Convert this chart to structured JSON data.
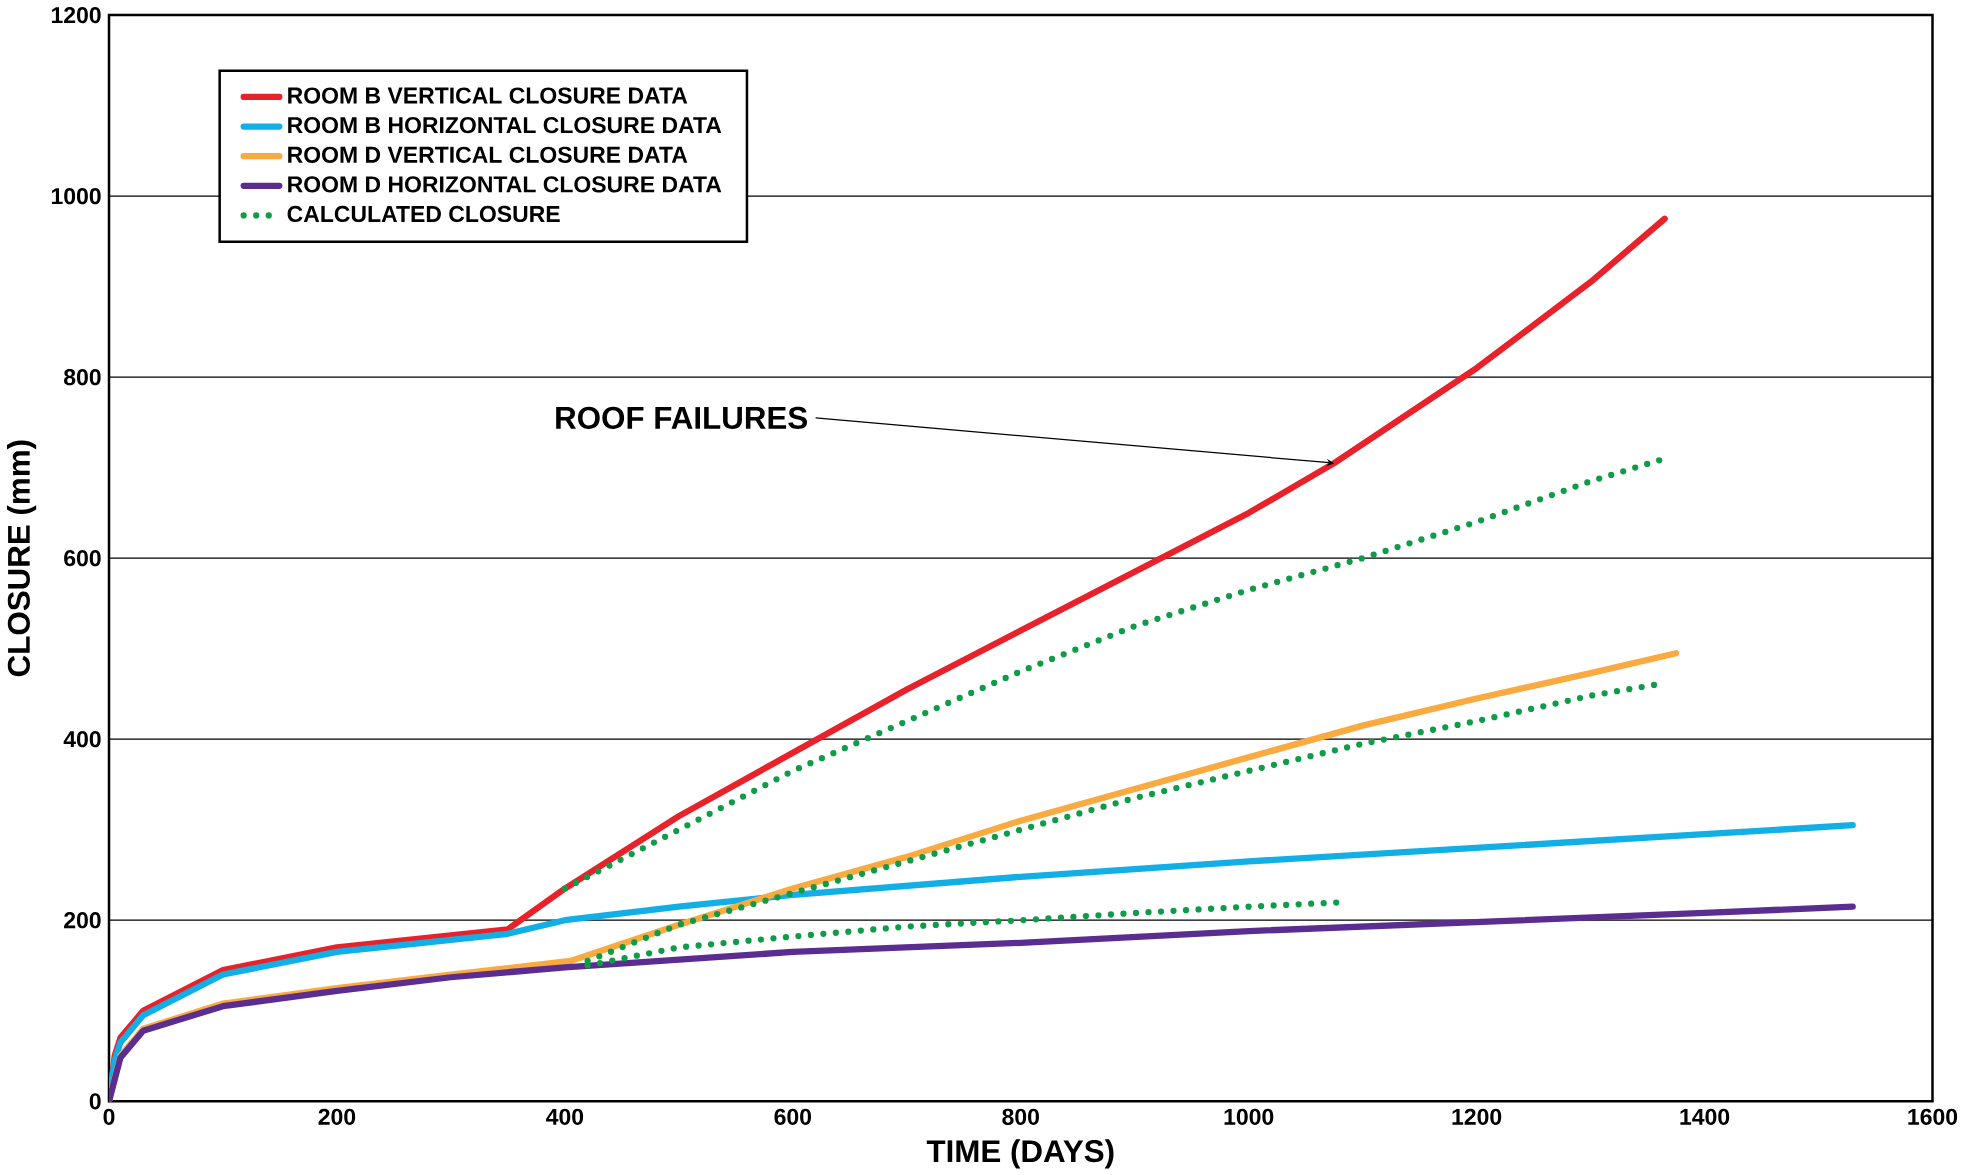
{
  "chart_data": {
    "type": "line",
    "xlabel": "TIME (DAYS)",
    "ylabel": "CLOSURE (mm)",
    "xlim": [
      0,
      1600
    ],
    "ylim": [
      0,
      1200
    ],
    "xticks": [
      0,
      200,
      400,
      600,
      800,
      1000,
      1200,
      1400,
      1600
    ],
    "yticks": [
      0,
      200,
      400,
      600,
      800,
      1000,
      1200
    ],
    "grid": "y",
    "legend": "top left",
    "marker": "none",
    "annotations": [
      {
        "text": "ROOF FAILURES",
        "x": 1075,
        "y": 705
      }
    ],
    "series": [
      {
        "name": "ROOM B VERTICAL CLOSURE DATA",
        "color": "#e8222a",
        "line_style": "solid",
        "x": [
          0,
          5,
          10,
          30,
          100,
          200,
          350,
          400,
          500,
          600,
          700,
          800,
          900,
          1000,
          1075,
          1200,
          1300,
          1365
        ],
        "values": [
          0,
          50,
          70,
          100,
          145,
          170,
          190,
          235,
          315,
          385,
          455,
          520,
          585,
          650,
          705,
          810,
          905,
          975
        ]
      },
      {
        "name": "ROOM B HORIZONTAL CLOSURE DATA",
        "color": "#12aee6",
        "line_style": "solid",
        "x": [
          0,
          5,
          10,
          30,
          100,
          200,
          350,
          400,
          500,
          600,
          800,
          1000,
          1200,
          1400,
          1530
        ],
        "values": [
          0,
          45,
          65,
          95,
          140,
          165,
          185,
          200,
          215,
          228,
          248,
          265,
          280,
          295,
          305
        ]
      },
      {
        "name": "ROOM D VERTICAL CLOSURE DATA",
        "color": "#f9aa40",
        "line_style": "solid",
        "x": [
          0,
          10,
          30,
          100,
          200,
          300,
          405,
          500,
          600,
          700,
          800,
          900,
          1000,
          1100,
          1200,
          1300,
          1375
        ],
        "values": [
          0,
          50,
          80,
          108,
          125,
          140,
          155,
          195,
          235,
          270,
          310,
          345,
          380,
          415,
          445,
          473,
          495
        ]
      },
      {
        "name": "ROOM D HORIZONTAL CLOSURE DATA",
        "color": "#5c2d91",
        "line_style": "solid",
        "x": [
          0,
          10,
          30,
          100,
          200,
          300,
          400,
          600,
          800,
          1000,
          1200,
          1400,
          1530
        ],
        "values": [
          0,
          48,
          78,
          105,
          122,
          137,
          148,
          165,
          175,
          188,
          198,
          208,
          215
        ]
      },
      {
        "name": "CALCULATED CLOSURE",
        "color": "#0f9b48",
        "line_style": "dotted",
        "x": [
          400,
          500,
          600,
          700,
          800,
          900,
          1000,
          1100,
          1200,
          1300,
          1365
        ],
        "values": [
          235,
          300,
          365,
          420,
          475,
          525,
          565,
          600,
          640,
          685,
          710
        ]
      },
      {
        "color": "#0f9b48",
        "line_style": "dotted",
        "x": [
          420,
          500,
          600,
          700,
          800,
          900,
          1000,
          1100,
          1200,
          1300,
          1365
        ],
        "values": [
          155,
          195,
          230,
          265,
          300,
          335,
          365,
          395,
          420,
          448,
          462
        ]
      },
      {
        "color": "#0f9b48",
        "line_style": "dotted",
        "x": [
          420,
          500,
          600,
          700,
          800,
          900,
          1000,
          1085
        ],
        "values": [
          150,
          170,
          182,
          193,
          200,
          208,
          215,
          220
        ]
      }
    ]
  }
}
